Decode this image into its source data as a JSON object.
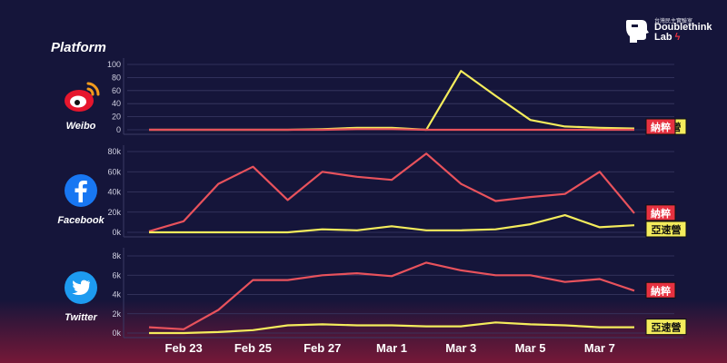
{
  "header": {
    "platform_title": "Platform",
    "logo_sub": "台灣民主實驗室",
    "logo_name_1": "Doublethink",
    "logo_name_2": "Lab"
  },
  "platforms": [
    "Weibo",
    "Facebook",
    "Twitter"
  ],
  "colors": {
    "series_yayingsu": "#f4ec5c",
    "series_nacui": "#e8525c",
    "tag_yayingsu_bg": "#f4ec5c",
    "tag_nacui_bg": "#e63140",
    "grid": "#3a3a64",
    "background": "#15153a"
  },
  "chart_data": [
    {
      "type": "line",
      "platform": "Weibo",
      "x": [
        "Feb 22",
        "Feb 23",
        "Feb 24",
        "Feb 25",
        "Feb 26",
        "Feb 27",
        "Feb 28",
        "Mar 1",
        "Mar 2",
        "Mar 3",
        "Mar 4",
        "Mar 5",
        "Mar 6",
        "Mar 7",
        "Mar 8"
      ],
      "ylim": [
        0,
        100
      ],
      "yticks": [
        "0",
        "20",
        "40",
        "60",
        "80",
        "100"
      ],
      "ytick_values": [
        0,
        20,
        40,
        60,
        80,
        100
      ],
      "series": [
        {
          "name": "亞速營",
          "color": "#f4ec5c",
          "values": [
            0,
            0,
            0,
            0,
            0,
            1,
            3,
            3,
            0,
            90,
            52,
            15,
            5,
            3,
            2
          ]
        },
        {
          "name": "納粹",
          "color": "#e8525c",
          "values": [
            0,
            0,
            0,
            0,
            0,
            0,
            1,
            1,
            0,
            0,
            0,
            0,
            0,
            0,
            0
          ]
        }
      ]
    },
    {
      "type": "line",
      "platform": "Facebook",
      "x": [
        "Feb 22",
        "Feb 23",
        "Feb 24",
        "Feb 25",
        "Feb 26",
        "Feb 27",
        "Feb 28",
        "Mar 1",
        "Mar 2",
        "Mar 3",
        "Mar 4",
        "Mar 5",
        "Mar 6",
        "Mar 7",
        "Mar 8"
      ],
      "ylim": [
        0,
        80000
      ],
      "yticks": [
        "0k",
        "20k",
        "40k",
        "60k",
        "80k"
      ],
      "ytick_values": [
        0,
        20000,
        40000,
        60000,
        80000
      ],
      "series": [
        {
          "name": "納粹",
          "color": "#e8525c",
          "values": [
            1000,
            11000,
            48000,
            65000,
            32000,
            60000,
            55000,
            52000,
            78000,
            48000,
            31000,
            35000,
            38000,
            60000,
            19000
          ]
        },
        {
          "name": "亞速營",
          "color": "#f4ec5c",
          "values": [
            0,
            0,
            0,
            0,
            0,
            3000,
            2000,
            6000,
            2000,
            2000,
            3000,
            8000,
            17000,
            5000,
            7000
          ]
        }
      ]
    },
    {
      "type": "line",
      "platform": "Twitter",
      "x": [
        "Feb 22",
        "Feb 23",
        "Feb 24",
        "Feb 25",
        "Feb 26",
        "Feb 27",
        "Feb 28",
        "Mar 1",
        "Mar 2",
        "Mar 3",
        "Mar 4",
        "Mar 5",
        "Mar 6",
        "Mar 7",
        "Mar 8"
      ],
      "ylim": [
        0,
        8000
      ],
      "yticks": [
        "0k",
        "2k",
        "4k",
        "6k",
        "8k"
      ],
      "ytick_values": [
        0,
        2000,
        4000,
        6000,
        8000
      ],
      "series": [
        {
          "name": "納粹",
          "color": "#e8525c",
          "values": [
            600,
            400,
            2400,
            5500,
            5500,
            6000,
            6200,
            5900,
            7300,
            6500,
            6000,
            6000,
            5300,
            5600,
            4400
          ]
        },
        {
          "name": "亞速營",
          "color": "#f4ec5c",
          "values": [
            0,
            0,
            100,
            300,
            800,
            900,
            800,
            800,
            700,
            700,
            1100,
            900,
            800,
            600,
            600
          ]
        }
      ]
    }
  ],
  "x_axis_labels": [
    {
      "label": "Feb 23",
      "x": "Feb 23"
    },
    {
      "label": "Feb 25",
      "x": "Feb 25"
    },
    {
      "label": "Feb 27",
      "x": "Feb 27"
    },
    {
      "label": "Mar 1",
      "x": "Mar 1"
    },
    {
      "label": "Mar 3",
      "x": "Mar 3"
    },
    {
      "label": "Mar 5",
      "x": "Mar 5"
    },
    {
      "label": "Mar 7",
      "x": "Mar 7"
    }
  ],
  "tags": [
    {
      "panel": 0,
      "series": "亞速營",
      "text": "亞速營"
    },
    {
      "panel": 0,
      "series": "納粹",
      "text": "納粹"
    },
    {
      "panel": 1,
      "series": "納粹",
      "text": "納粹"
    },
    {
      "panel": 1,
      "series": "亞速營",
      "text": "亞速營"
    },
    {
      "panel": 2,
      "series": "納粹",
      "text": "納粹"
    },
    {
      "panel": 2,
      "series": "亞速營",
      "text": "亞速營"
    }
  ]
}
